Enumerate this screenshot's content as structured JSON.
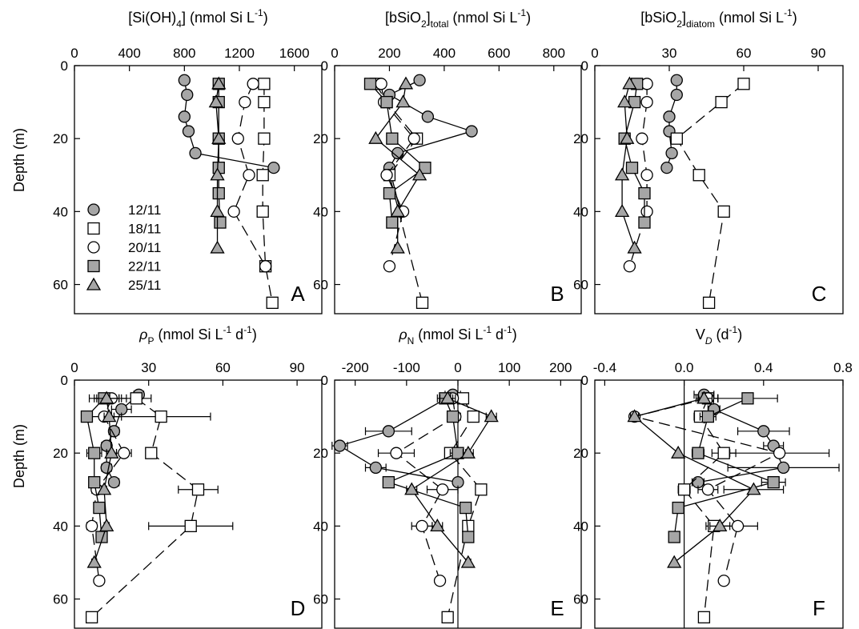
{
  "figure": {
    "y_axis_label": "Depth (m)",
    "legend": [
      {
        "label": "12/11",
        "marker": "circle",
        "fill": "#a6a6a6"
      },
      {
        "label": "18/11",
        "marker": "square",
        "fill": "#ffffff"
      },
      {
        "label": "20/11",
        "marker": "circle",
        "fill": "#ffffff"
      },
      {
        "label": "22/11",
        "marker": "square",
        "fill": "#a6a6a6"
      },
      {
        "label": "25/11",
        "marker": "triangle",
        "fill": "#a6a6a6"
      }
    ],
    "colors": {
      "grey_fill": "#a6a6a6",
      "stroke": "#000000"
    }
  },
  "chart_data": [
    {
      "panel": "A",
      "type": "line",
      "xlabel": "[Si(OH)4] (nmol Si L-1)",
      "xlim": [
        0,
        1800
      ],
      "ylim": [
        0,
        68
      ],
      "y_inverted": true,
      "xticks": [
        0,
        400,
        800,
        1200,
        1600
      ],
      "yticks": [
        0,
        20,
        40,
        60
      ],
      "series": [
        {
          "name": "12/11",
          "x": [
            800,
            820,
            800,
            830,
            880,
            1450
          ],
          "y": [
            4,
            8,
            14,
            18,
            24,
            28
          ]
        },
        {
          "name": "18/11",
          "x": [
            1380,
            1380,
            1380,
            1370,
            1370,
            1390,
            1440
          ],
          "y": [
            5,
            10,
            20,
            30,
            40,
            55,
            65
          ]
        },
        {
          "name": "20/11",
          "x": [
            1300,
            1240,
            1190,
            1270,
            1160,
            1390
          ],
          "y": [
            5,
            10,
            20,
            30,
            40,
            55
          ]
        },
        {
          "name": "22/11",
          "x": [
            1050,
            1050,
            1050,
            1050,
            1050,
            1060
          ],
          "y": [
            5,
            10,
            20,
            28,
            35,
            43
          ]
        },
        {
          "name": "25/11",
          "x": [
            1050,
            1030,
            1050,
            1040,
            1040,
            1040
          ],
          "y": [
            5,
            10,
            20,
            30,
            40,
            50
          ]
        }
      ]
    },
    {
      "panel": "B",
      "type": "line",
      "xlabel": "[bSiO2]total (nmol Si L-1)",
      "xlim": [
        0,
        900
      ],
      "ylim": [
        0,
        68
      ],
      "y_inverted": true,
      "xticks": [
        0,
        200,
        400,
        600,
        800
      ],
      "yticks": [
        0,
        20,
        40,
        60
      ],
      "series": [
        {
          "name": "12/11",
          "x": [
            310,
            200,
            340,
            500,
            230,
            200,
            240
          ],
          "y": [
            4,
            8,
            14,
            18,
            24,
            28,
            40
          ]
        },
        {
          "name": "18/11",
          "x": [
            150,
            190,
            300,
            200,
            320
          ],
          "y": [
            5,
            10,
            20,
            30,
            65
          ]
        },
        {
          "name": "20/11",
          "x": [
            170,
            180,
            290,
            190,
            250,
            200
          ],
          "y": [
            5,
            10,
            20,
            30,
            40,
            55
          ]
        },
        {
          "name": "22/11",
          "x": [
            130,
            190,
            210,
            330,
            200,
            210
          ],
          "y": [
            5,
            10,
            20,
            28,
            35,
            43
          ]
        },
        {
          "name": "25/11",
          "x": [
            260,
            250,
            150,
            310,
            230,
            230
          ],
          "y": [
            5,
            10,
            20,
            30,
            40,
            50
          ]
        }
      ]
    },
    {
      "panel": "C",
      "type": "line",
      "xlabel": "[bSiO2]diatom (nmol Si L-1)",
      "xlim": [
        0,
        100
      ],
      "ylim": [
        0,
        68
      ],
      "y_inverted": true,
      "xticks": [
        0,
        30,
        60,
        90
      ],
      "yticks": [
        0,
        20,
        40,
        60
      ],
      "series": [
        {
          "name": "12/11",
          "x": [
            33,
            33,
            30,
            30,
            31,
            29
          ],
          "y": [
            4,
            8,
            14,
            18,
            24,
            28
          ]
        },
        {
          "name": "18/11",
          "x": [
            60,
            51,
            33,
            42,
            52,
            46
          ],
          "y": [
            5,
            10,
            20,
            30,
            40,
            65
          ]
        },
        {
          "name": "20/11",
          "x": [
            21,
            21,
            19,
            21,
            21,
            14
          ],
          "y": [
            5,
            10,
            20,
            30,
            40,
            55
          ]
        },
        {
          "name": "22/11",
          "x": [
            17,
            16,
            12,
            15,
            20,
            20
          ],
          "y": [
            5,
            10,
            20,
            28,
            35,
            43
          ]
        },
        {
          "name": "25/11",
          "x": [
            14,
            12,
            13,
            11,
            11,
            16
          ],
          "y": [
            5,
            10,
            20,
            30,
            40,
            50
          ]
        }
      ]
    },
    {
      "panel": "D",
      "type": "line",
      "xlabel": "ρP (nmol Si L-1 d-1)",
      "xlim": [
        0,
        100
      ],
      "ylim": [
        0,
        68
      ],
      "y_inverted": true,
      "xticks": [
        0,
        30,
        60,
        90
      ],
      "yticks": [
        0,
        20,
        40,
        60
      ],
      "series": [
        {
          "name": "12/11",
          "x": [
            26,
            19,
            16,
            13,
            13,
            16
          ],
          "y": [
            4,
            8,
            14,
            18,
            24,
            28
          ],
          "xerr": [
            2,
            4,
            2,
            2,
            2,
            2
          ]
        },
        {
          "name": "18/11",
          "x": [
            25,
            35,
            31,
            50,
            47,
            7
          ],
          "y": [
            5,
            10,
            20,
            30,
            40,
            65
          ],
          "xerr": [
            6,
            20,
            0,
            8,
            17,
            0
          ]
        },
        {
          "name": "20/11",
          "x": [
            15,
            12,
            20,
            9,
            7,
            10
          ],
          "y": [
            5,
            10,
            20,
            30,
            40,
            55
          ],
          "xerr": [
            6,
            7,
            3,
            2,
            2,
            1
          ]
        },
        {
          "name": "22/11",
          "x": [
            12,
            5,
            8,
            8,
            10,
            11
          ],
          "y": [
            5,
            10,
            20,
            28,
            35,
            43
          ],
          "xerr": [
            6,
            2,
            3,
            1,
            1,
            1
          ]
        },
        {
          "name": "25/11",
          "x": [
            13,
            14,
            15,
            12,
            13,
            8
          ],
          "y": [
            5,
            10,
            20,
            30,
            40,
            50
          ],
          "xerr": [
            5,
            2,
            2,
            1,
            1,
            1
          ]
        }
      ]
    },
    {
      "panel": "E",
      "type": "line",
      "xlabel": "ρN (nmol Si L-1 d-1)",
      "xlim": [
        -240,
        240
      ],
      "ylim": [
        0,
        68
      ],
      "y_inverted": true,
      "xticks": [
        -200,
        -100,
        0,
        100,
        200
      ],
      "yticks": [
        0,
        20,
        40,
        60
      ],
      "series": [
        {
          "name": "12/11",
          "x": [
            -10,
            -135,
            -230,
            -160,
            0
          ],
          "y": [
            4,
            14,
            18,
            24,
            28
          ],
          "xerr": [
            15,
            45,
            15,
            20,
            0
          ]
        },
        {
          "name": "18/11",
          "x": [
            10,
            30,
            -15,
            45,
            20,
            -20
          ],
          "y": [
            5,
            10,
            20,
            30,
            40,
            65
          ],
          "xerr": [
            0,
            0,
            0,
            0,
            0,
            0
          ]
        },
        {
          "name": "20/11",
          "x": [
            -10,
            -5,
            -120,
            -30,
            -70,
            -35
          ],
          "y": [
            5,
            10,
            20,
            30,
            40,
            55
          ],
          "xerr": [
            10,
            10,
            35,
            30,
            20,
            5
          ]
        },
        {
          "name": "22/11",
          "x": [
            -25,
            -10,
            0,
            -135,
            15,
            20
          ],
          "y": [
            5,
            10,
            20,
            28,
            35,
            43
          ],
          "xerr": [
            15,
            10,
            15,
            10,
            5,
            5
          ]
        },
        {
          "name": "25/11",
          "x": [
            -20,
            65,
            20,
            -90,
            -40,
            20
          ],
          "y": [
            5,
            10,
            20,
            30,
            40,
            50
          ],
          "xerr": [
            15,
            10,
            10,
            10,
            10,
            5
          ]
        }
      ]
    },
    {
      "panel": "F",
      "type": "line",
      "xlabel": "VD (d-1)",
      "xlim": [
        -0.45,
        0.8
      ],
      "ylim": [
        0,
        68
      ],
      "y_inverted": true,
      "xticks": [
        -0.4,
        0.0,
        0.4,
        0.8
      ],
      "yticks": [
        0,
        20,
        40,
        60
      ],
      "series": [
        {
          "name": "12/11",
          "x": [
            0.1,
            0.15,
            0.4,
            0.45,
            0.5,
            0.07
          ],
          "y": [
            4,
            8,
            14,
            18,
            24,
            28
          ],
          "xerr": [
            0.05,
            0.03,
            0.13,
            0.05,
            0.28,
            0.03
          ]
        },
        {
          "name": "18/11",
          "x": [
            0.12,
            0.08,
            0.2,
            0.0,
            0.15,
            0.1
          ],
          "y": [
            5,
            10,
            20,
            30,
            40,
            65
          ],
          "xerr": [
            0.05,
            0.03,
            0.06,
            0.03,
            0.04,
            0.0
          ]
        },
        {
          "name": "20/11",
          "x": [
            0.12,
            -0.25,
            0.48,
            0.12,
            0.27,
            0.2
          ],
          "y": [
            5,
            10,
            20,
            30,
            40,
            55
          ],
          "xerr": [
            0.05,
            0.02,
            0.25,
            0.05,
            0.1,
            0.0
          ]
        },
        {
          "name": "22/11",
          "x": [
            0.32,
            0.12,
            0.07,
            0.45,
            -0.03,
            -0.05
          ],
          "y": [
            5,
            10,
            20,
            28,
            35,
            43
          ],
          "xerr": [
            0.15,
            0.04,
            0.03,
            0.06,
            0.0,
            0.0
          ]
        },
        {
          "name": "25/11",
          "x": [
            0.1,
            -0.25,
            -0.03,
            0.35,
            0.18,
            -0.05
          ],
          "y": [
            5,
            10,
            20,
            30,
            40,
            50
          ],
          "xerr": [
            0.04,
            0.02,
            0.0,
            0.15,
            0.05,
            0.0
          ]
        }
      ]
    }
  ]
}
